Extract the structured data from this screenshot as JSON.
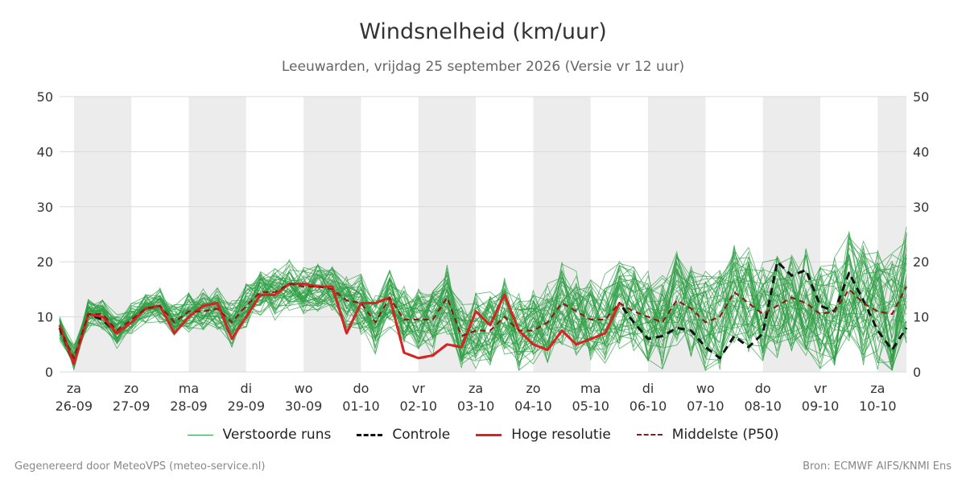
{
  "chart_data": {
    "type": "line",
    "title": "Windsnelheid (km/uur)",
    "subtitle": "Leeuwarden, vrijdag 25 september 2026 (Versie vr 12 uur)",
    "ylim": [
      0,
      50
    ],
    "yticks": [
      0,
      10,
      20,
      30,
      40,
      50
    ],
    "grid": true,
    "x_day_range": [
      -0.25,
      14.5
    ],
    "day_ticks": [
      {
        "day": "za",
        "date": "26-09"
      },
      {
        "day": "zo",
        "date": "27-09"
      },
      {
        "day": "ma",
        "date": "28-09"
      },
      {
        "day": "di",
        "date": "29-09"
      },
      {
        "day": "wo",
        "date": "30-09"
      },
      {
        "day": "do",
        "date": "01-10"
      },
      {
        "day": "vr",
        "date": "02-10"
      },
      {
        "day": "za",
        "date": "03-10"
      },
      {
        "day": "zo",
        "date": "04-10"
      },
      {
        "day": "ma",
        "date": "05-10"
      },
      {
        "day": "di",
        "date": "06-10"
      },
      {
        "day": "wo",
        "date": "07-10"
      },
      {
        "day": "do",
        "date": "08-10"
      },
      {
        "day": "vr",
        "date": "09-10"
      },
      {
        "day": "za",
        "date": "10-10"
      }
    ],
    "legend_position": "bottom",
    "series": [
      {
        "name": "Controle",
        "color": "#111111",
        "style": "dashed",
        "points": [
          [
            -0.25,
            8
          ],
          [
            0,
            1.5
          ],
          [
            0.25,
            10.5
          ],
          [
            0.5,
            9.5
          ],
          [
            0.75,
            7
          ],
          [
            1,
            9
          ],
          [
            1.25,
            11.5
          ],
          [
            1.5,
            12
          ],
          [
            1.75,
            7
          ],
          [
            2,
            10
          ],
          [
            2.25,
            12
          ],
          [
            2.5,
            12.5
          ],
          [
            2.75,
            6
          ],
          [
            3,
            10
          ],
          [
            3.25,
            14
          ],
          [
            3.5,
            14
          ],
          [
            3.75,
            16
          ],
          [
            4,
            16
          ],
          [
            4.25,
            15.5
          ],
          [
            4.5,
            15.5
          ],
          [
            4.75,
            7
          ],
          [
            5,
            12.5
          ],
          [
            5.25,
            12.5
          ],
          [
            5.5,
            13.5
          ],
          [
            5.75,
            3.5
          ],
          [
            6,
            2.5
          ],
          [
            6.25,
            3
          ],
          [
            6.5,
            5
          ],
          [
            6.75,
            4.5
          ],
          [
            7,
            11
          ],
          [
            7.25,
            8.5
          ],
          [
            7.5,
            14
          ],
          [
            7.75,
            7.5
          ],
          [
            8,
            5
          ],
          [
            8.25,
            4
          ],
          [
            8.5,
            7.5
          ],
          [
            8.75,
            5
          ],
          [
            9,
            6
          ],
          [
            9.25,
            7
          ],
          [
            9.5,
            12.5
          ],
          [
            9.75,
            9
          ],
          [
            10,
            6
          ],
          [
            10.25,
            6.5
          ],
          [
            10.5,
            8
          ],
          [
            10.75,
            7.5
          ],
          [
            11,
            4.5
          ],
          [
            11.25,
            2.5
          ],
          [
            11.5,
            6.5
          ],
          [
            11.75,
            4.5
          ],
          [
            12,
            7
          ],
          [
            12.25,
            20
          ],
          [
            12.5,
            17.5
          ],
          [
            12.75,
            18.5
          ],
          [
            13,
            12
          ],
          [
            13.25,
            11
          ],
          [
            13.5,
            18
          ],
          [
            13.75,
            13
          ],
          [
            14,
            7.5
          ],
          [
            14.25,
            4
          ],
          [
            14.5,
            8
          ]
        ]
      },
      {
        "name": "Hoge resolutie",
        "color": "#dd2222",
        "style": "solid",
        "points": [
          [
            -0.25,
            8.5
          ],
          [
            0,
            1.5
          ],
          [
            0.25,
            10.5
          ],
          [
            0.5,
            10
          ],
          [
            0.75,
            7
          ],
          [
            1,
            9
          ],
          [
            1.25,
            11.5
          ],
          [
            1.5,
            12
          ],
          [
            1.75,
            7
          ],
          [
            2,
            10
          ],
          [
            2.25,
            12
          ],
          [
            2.5,
            12.5
          ],
          [
            2.75,
            6
          ],
          [
            3,
            10
          ],
          [
            3.25,
            14
          ],
          [
            3.5,
            14
          ],
          [
            3.75,
            16
          ],
          [
            4,
            16
          ],
          [
            4.25,
            15.5
          ],
          [
            4.5,
            15.5
          ],
          [
            4.75,
            7
          ],
          [
            5,
            12.5
          ],
          [
            5.25,
            12.5
          ],
          [
            5.5,
            13.5
          ],
          [
            5.75,
            3.5
          ],
          [
            6,
            2.5
          ],
          [
            6.25,
            3
          ],
          [
            6.5,
            5
          ],
          [
            6.75,
            4.5
          ],
          [
            7,
            11
          ],
          [
            7.25,
            8.5
          ],
          [
            7.5,
            14
          ],
          [
            7.75,
            7.5
          ],
          [
            8,
            5
          ],
          [
            8.25,
            4
          ],
          [
            8.5,
            7.5
          ],
          [
            8.75,
            5
          ],
          [
            9,
            6
          ],
          [
            9.25,
            7
          ],
          [
            9.5,
            12.5
          ]
        ]
      },
      {
        "name": "Middelste (P50)",
        "color": "#8b1a1a",
        "style": "dashed",
        "points": [
          [
            -0.25,
            8
          ],
          [
            0,
            2.5
          ],
          [
            0.25,
            10.5
          ],
          [
            0.5,
            10.5
          ],
          [
            0.75,
            7.5
          ],
          [
            1,
            9.5
          ],
          [
            1.25,
            11.5
          ],
          [
            1.5,
            12
          ],
          [
            1.75,
            9
          ],
          [
            2,
            11
          ],
          [
            2.25,
            11
          ],
          [
            2.5,
            11.5
          ],
          [
            2.75,
            9
          ],
          [
            3,
            12
          ],
          [
            3.25,
            14.5
          ],
          [
            3.5,
            14.5
          ],
          [
            3.75,
            16
          ],
          [
            4,
            15.5
          ],
          [
            4.25,
            15.5
          ],
          [
            4.5,
            15
          ],
          [
            4.75,
            13
          ],
          [
            5,
            12.5
          ],
          [
            5.25,
            9
          ],
          [
            5.5,
            13.5
          ],
          [
            5.75,
            9.5
          ],
          [
            6,
            9.5
          ],
          [
            6.25,
            9.5
          ],
          [
            6.5,
            13.5
          ],
          [
            6.75,
            6.5
          ],
          [
            7,
            7.5
          ],
          [
            7.25,
            7.5
          ],
          [
            7.5,
            10
          ],
          [
            7.75,
            7.5
          ],
          [
            8,
            7.5
          ],
          [
            8.25,
            9
          ],
          [
            8.5,
            12.5
          ],
          [
            8.75,
            11
          ],
          [
            9,
            9.5
          ],
          [
            9.25,
            9.5
          ],
          [
            9.5,
            12.5
          ],
          [
            9.75,
            11
          ],
          [
            10,
            10
          ],
          [
            10.25,
            9
          ],
          [
            10.5,
            13
          ],
          [
            10.75,
            11.5
          ],
          [
            11,
            9
          ],
          [
            11.25,
            10
          ],
          [
            11.5,
            14.5
          ],
          [
            11.75,
            12.5
          ],
          [
            12,
            10.5
          ],
          [
            12.25,
            12
          ],
          [
            12.5,
            13.5
          ],
          [
            12.75,
            12.5
          ],
          [
            13,
            10.5
          ],
          [
            13.25,
            11
          ],
          [
            13.5,
            15
          ],
          [
            13.75,
            12.5
          ],
          [
            14,
            11
          ],
          [
            14.25,
            10.5
          ],
          [
            14.5,
            15.5
          ]
        ]
      }
    ],
    "ensemble": {
      "name": "Verstoorde runs",
      "color": "#2e9e45",
      "members": 50
    }
  },
  "legend": [
    {
      "label": "Verstoorde runs",
      "color": "#2e9e45",
      "style": "thin"
    },
    {
      "label": "Controle",
      "color": "#111111",
      "style": "dashed"
    },
    {
      "label": "Hoge resolutie",
      "color": "#dd2222",
      "style": "solid"
    },
    {
      "label": "Middelste (P50)",
      "color": "#8b1a1a",
      "style": "dashed"
    }
  ],
  "footer": {
    "left": "Gegenereerd door MeteoVPS (meteo-service.nl)",
    "right": "Bron: ECMWF AIFS/KNMI Ens"
  }
}
